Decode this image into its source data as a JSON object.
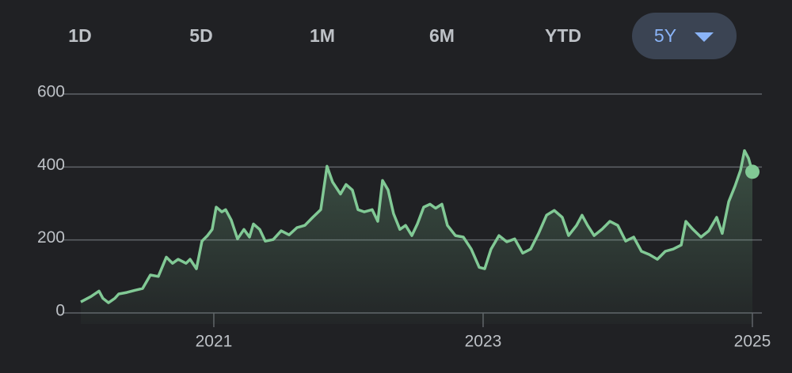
{
  "tabs": [
    "1D",
    "5D",
    "1M",
    "6M",
    "YTD",
    "5Y"
  ],
  "active_tab": 5,
  "chart_data": {
    "type": "line",
    "color": "#81c995",
    "grid": true,
    "xlim": [
      2020.012,
      2025
    ],
    "xticks": [
      2021,
      2023,
      2025
    ],
    "ylim": [
      0,
      600
    ],
    "yticks": [
      0,
      200,
      400,
      600
    ],
    "x": [
      2020.012,
      2020.088,
      2020.147,
      2020.176,
      2020.218,
      2020.265,
      2020.294,
      2020.353,
      2020.412,
      2020.471,
      2020.529,
      2020.588,
      2020.647,
      2020.694,
      2020.735,
      2020.794,
      2020.824,
      2020.871,
      2020.912,
      2020.953,
      2020.988,
      2021.018,
      2021.059,
      2021.088,
      2021.129,
      2021.176,
      2021.224,
      2021.265,
      2021.294,
      2021.341,
      2021.382,
      2021.441,
      2021.5,
      2021.559,
      2021.618,
      2021.676,
      2021.735,
      2021.794,
      2021.841,
      2021.882,
      2021.941,
      2021.982,
      2022.029,
      2022.071,
      2022.118,
      2022.176,
      2022.218,
      2022.253,
      2022.294,
      2022.335,
      2022.382,
      2022.424,
      2022.471,
      2022.512,
      2022.559,
      2022.606,
      2022.647,
      2022.694,
      2022.735,
      2022.794,
      2022.853,
      2022.912,
      2022.971,
      2023.012,
      2023.059,
      2023.118,
      2023.176,
      2023.235,
      2023.294,
      2023.353,
      2023.412,
      2023.471,
      2023.529,
      2023.588,
      2023.635,
      2023.694,
      2023.735,
      2023.776,
      2023.824,
      2023.882,
      2023.941,
      2024.0,
      2024.059,
      2024.118,
      2024.176,
      2024.235,
      2024.294,
      2024.353,
      2024.412,
      2024.471,
      2024.506,
      2024.559,
      2024.618,
      2024.676,
      2024.735,
      2024.776,
      2024.824,
      2024.871,
      2024.912,
      2024.941,
      2024.971,
      2025.0
    ],
    "values": [
      30,
      45,
      60,
      40,
      28,
      40,
      52,
      56,
      62,
      67,
      104,
      100,
      153,
      136,
      147,
      136,
      147,
      121,
      197,
      212,
      229,
      290,
      277,
      283,
      255,
      203,
      229,
      208,
      244,
      229,
      197,
      201,
      225,
      214,
      234,
      240,
      262,
      283,
      402,
      359,
      326,
      352,
      337,
      283,
      277,
      283,
      251,
      363,
      337,
      272,
      229,
      240,
      212,
      244,
      290,
      298,
      287,
      298,
      240,
      212,
      208,
      175,
      125,
      121,
      175,
      212,
      195,
      203,
      164,
      175,
      218,
      268,
      281,
      262,
      212,
      240,
      268,
      240,
      212,
      229,
      251,
      240,
      197,
      208,
      169,
      160,
      147,
      169,
      175,
      186,
      251,
      229,
      208,
      225,
      262,
      218,
      305,
      348,
      391,
      445,
      424,
      387
    ]
  }
}
